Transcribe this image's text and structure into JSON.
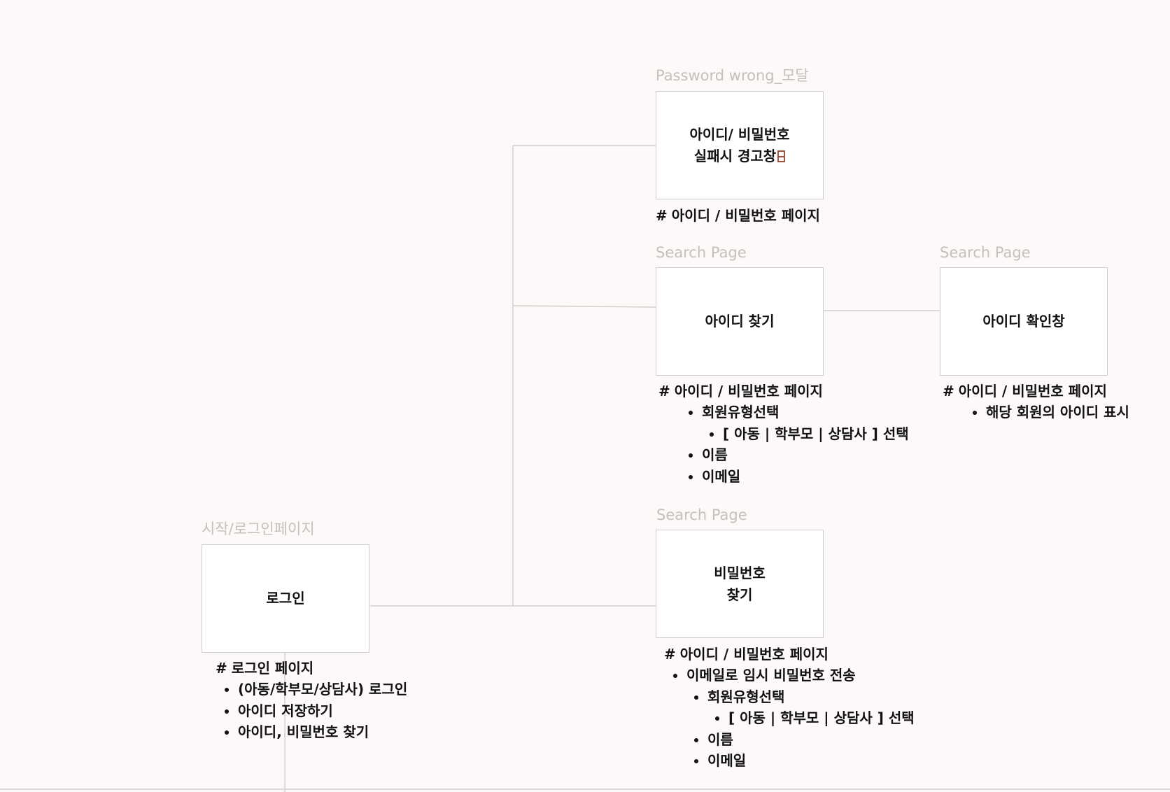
{
  "frames": {
    "login": {
      "label": "시작/로그인페이지",
      "text": "로그인",
      "note_title": "로그인 페이지",
      "bullets": [
        "(아동/학부모/상담사) 로그인",
        "아이디 저장하기",
        "아이디, 비밀번호 찾기"
      ]
    },
    "pw_wrong": {
      "label": "Password wrong_모달",
      "text": "아이디/ 비밀번호\n실패시 경고창",
      "note_title": "아이디 / 비밀번호 페이지"
    },
    "find_id": {
      "label": "Search Page",
      "text": "아이디 찾기",
      "note_title": "아이디 / 비밀번호 페이지",
      "bullets": [
        "회원유형선택",
        "[ 아동 | 학부모  | 상담사 ] 선택",
        "이름",
        "이메일"
      ]
    },
    "id_confirm": {
      "label": "Search Page",
      "text": "아이디 확인창",
      "note_title": "아이디 / 비밀번호 페이지",
      "bullets": [
        "해당 회원의 아이디 표시"
      ]
    },
    "find_pw": {
      "label": "Search Page",
      "text": "비밀번호\n찾기",
      "note_title": "아이디 / 비밀번호 페이지",
      "bullets": [
        "이메일로 임시 비밀번호 전송",
        "회원유형선택",
        "[ 아동 | 학부모  | 상담사 ] 선택",
        "이름",
        "이메일"
      ]
    }
  },
  "hash_symbol": "#",
  "colors": {
    "background": "#fcf9f8",
    "frame_border": "#cfcccb",
    "connector": "#d2cfcd",
    "label": "#c4c0be",
    "icon": "#a0523a"
  },
  "icons": {
    "warning": "warning-box-icon"
  }
}
